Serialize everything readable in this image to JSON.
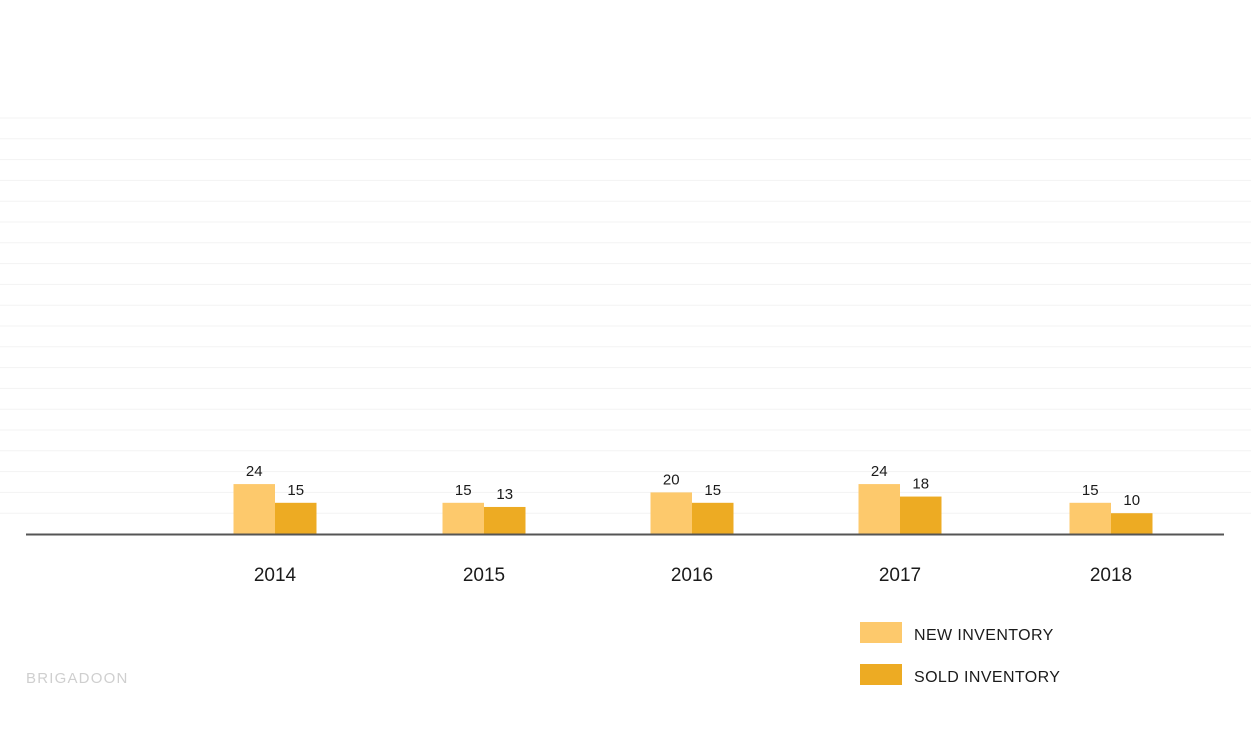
{
  "chart_data": {
    "type": "bar",
    "categories": [
      "2014",
      "2015",
      "2016",
      "2017",
      "2018"
    ],
    "series": [
      {
        "name": "NEW INVENTORY",
        "values": [
          24,
          15,
          20,
          24,
          15
        ],
        "color": "#fdc96c"
      },
      {
        "name": "SOLD INVENTORY",
        "values": [
          15,
          13,
          15,
          18,
          10
        ],
        "color": "#edab23"
      }
    ],
    "ylim": [
      0,
      200
    ],
    "grid": true,
    "legend_position": "bottom-right",
    "title": "",
    "xlabel": "",
    "ylabel": ""
  },
  "watermark": "BRIGADOON",
  "colors": {
    "axis": "#555555",
    "grid": "#f3f3f3",
    "label": "#1b1b1b",
    "watermark": "#cfcfcf"
  }
}
